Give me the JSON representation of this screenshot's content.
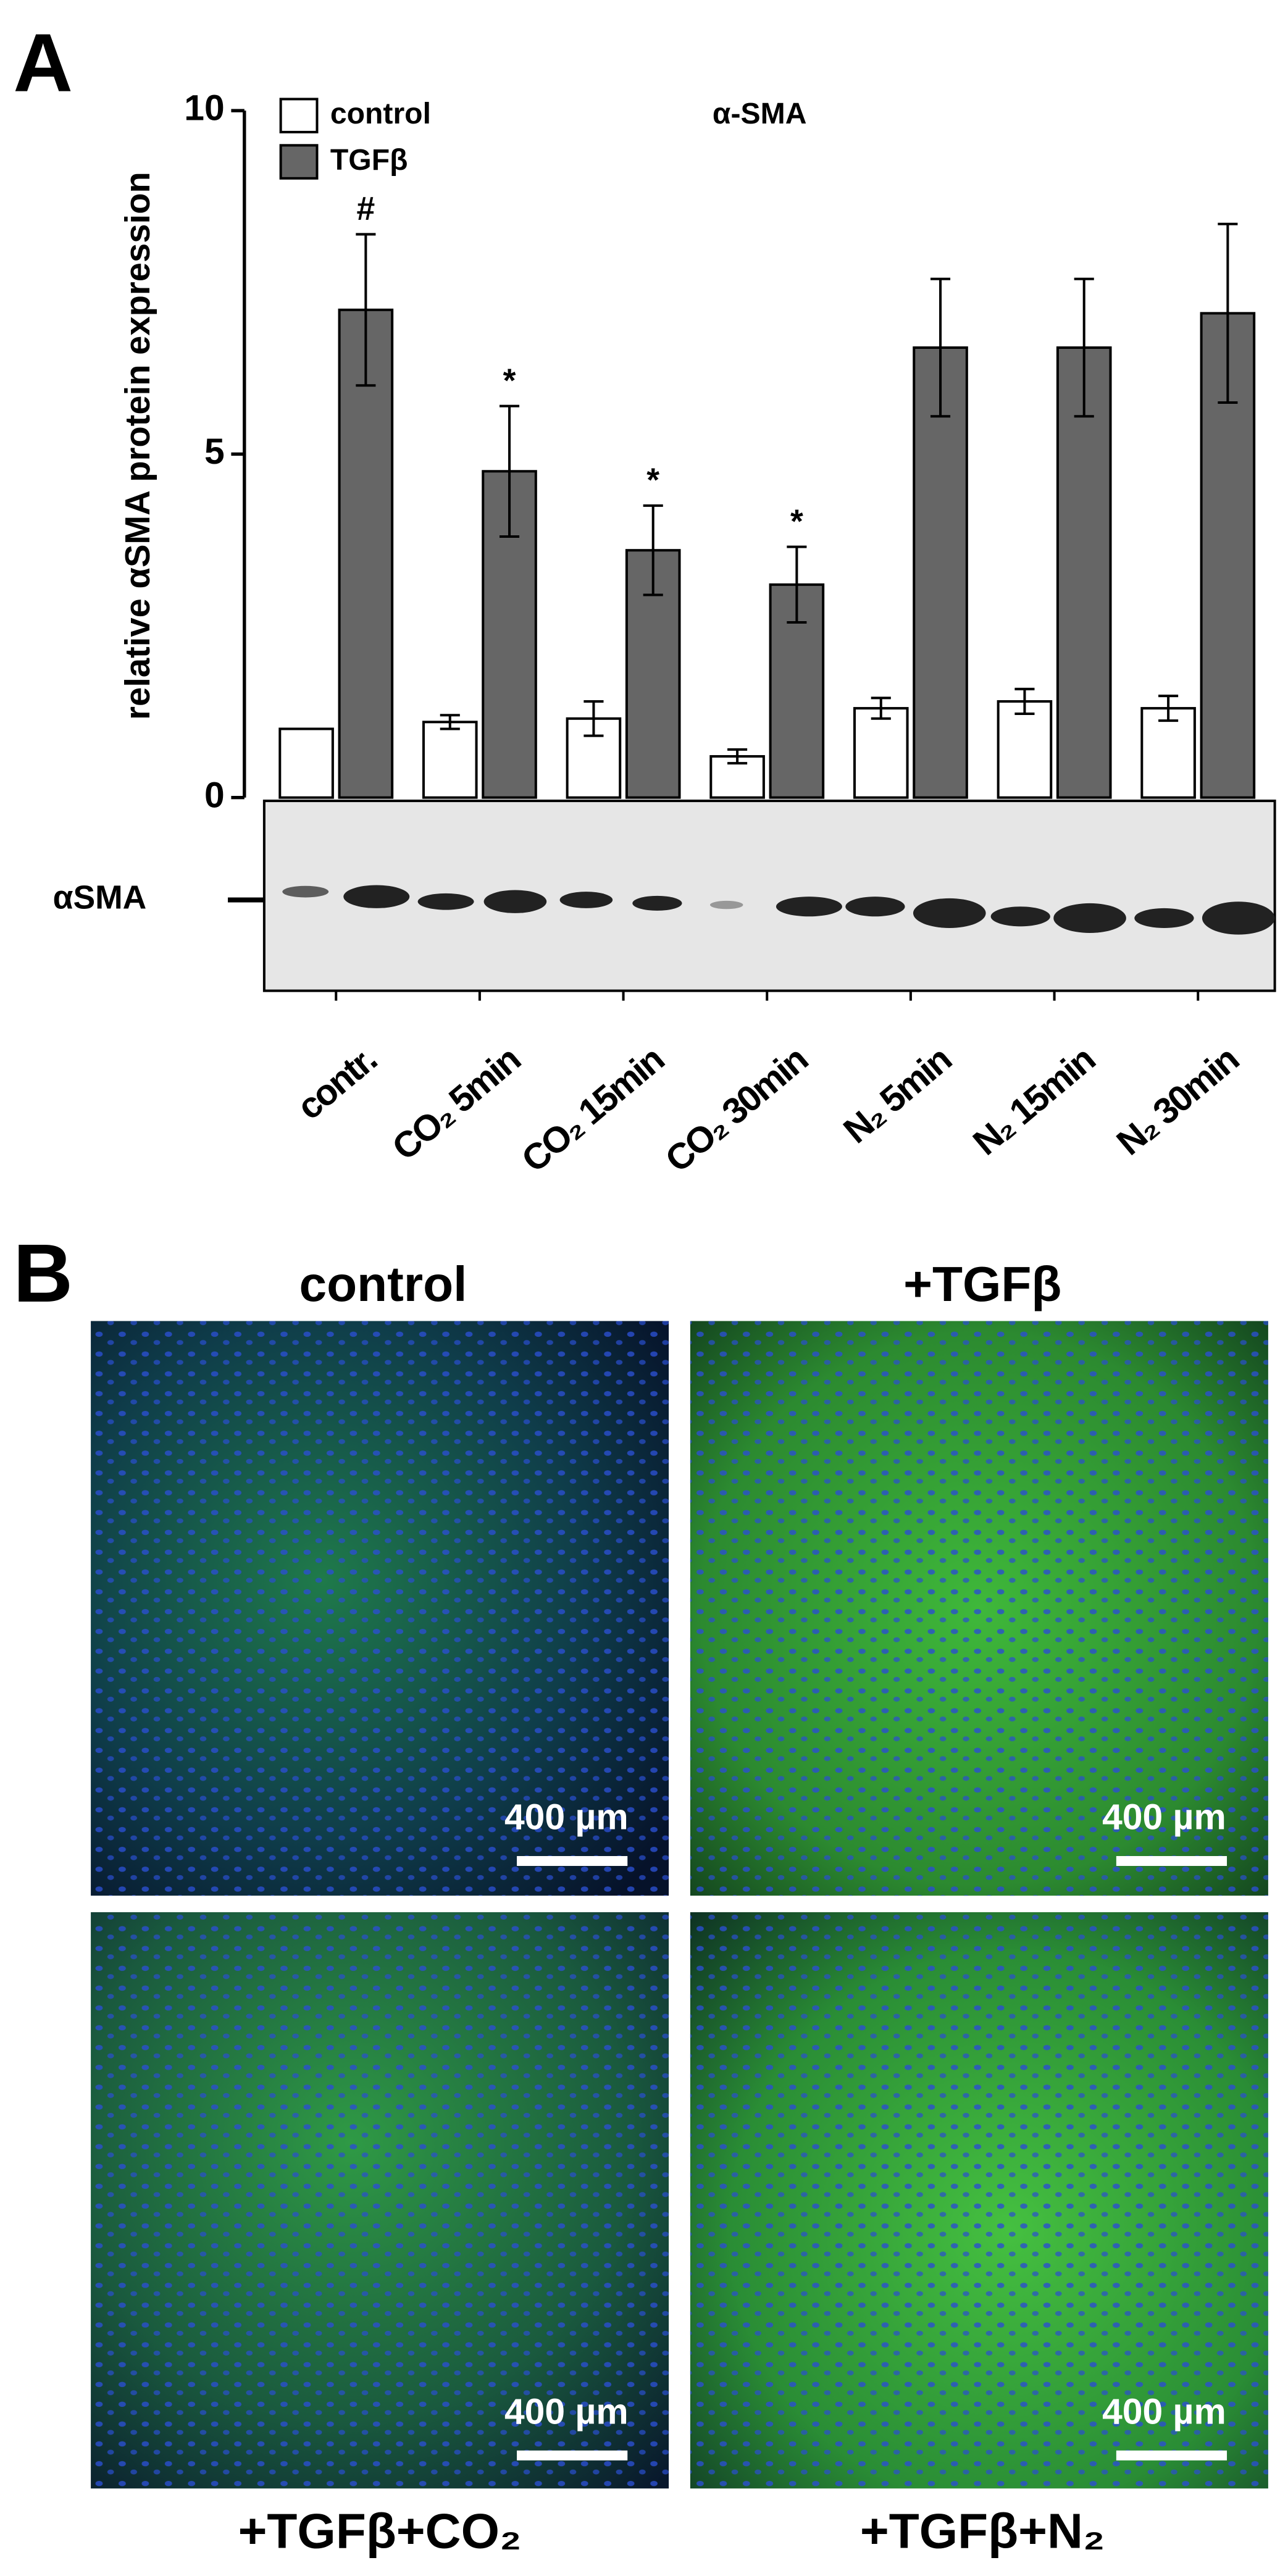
{
  "panel_a": "A",
  "panel_b": "B",
  "chart_data": {
    "type": "bar",
    "title": "α-SMA",
    "ylabel": "relative αSMA protein expression",
    "categories": [
      "contr.",
      "CO₂ 5min",
      "CO₂ 15min",
      "CO₂ 30min",
      "N₂ 5min",
      "N₂ 15min",
      "N₂ 30min"
    ],
    "series": [
      {
        "name": "control",
        "color": "#ffffff",
        "values": [
          1.0,
          1.1,
          1.15,
          0.6,
          1.3,
          1.4,
          1.3
        ],
        "errors": [
          0,
          0.1,
          0.25,
          0.1,
          0.15,
          0.18,
          0.18
        ]
      },
      {
        "name": "TGFβ",
        "color": "#666666",
        "values": [
          7.1,
          4.75,
          3.6,
          3.1,
          6.55,
          6.55,
          7.05
        ],
        "errors": [
          1.1,
          0.95,
          0.65,
          0.55,
          1.0,
          1.0,
          1.3
        ],
        "significance": [
          "#",
          "*",
          "*",
          "*",
          null,
          null,
          null
        ]
      }
    ],
    "ylim": [
      0,
      10
    ],
    "yticks": [
      0,
      5,
      10
    ],
    "blot_label": "αSMA"
  },
  "micrographs": [
    {
      "title": "control",
      "scale_bar": "400 µm"
    },
    {
      "title": "+TGFβ",
      "scale_bar": "400 µm"
    },
    {
      "title": "+TGFβ+CO₂",
      "scale_bar": "400 µm"
    },
    {
      "title": "+TGFβ+N₂",
      "scale_bar": "400 µm"
    }
  ]
}
